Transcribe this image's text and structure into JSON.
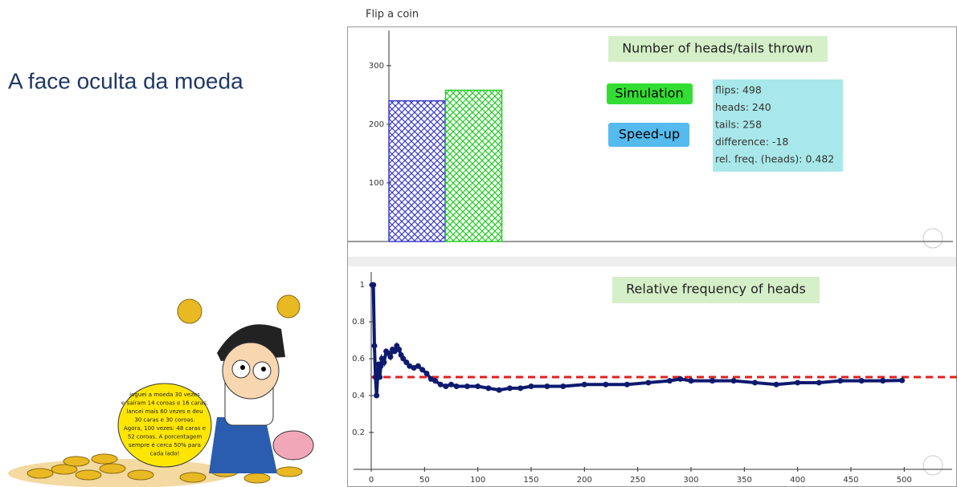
{
  "slide_title": "A face oculta da moeda",
  "applet_label": "Flip a coin",
  "bubble_lines": [
    "joguei a moeda 30 vezes",
    "e saíram 14 coroas e 16 caras.",
    "lancei mais 60 vezes e deu",
    "30 caras e 30 coroas.",
    "Agora, 100 vezes: 48 caras e",
    "52 coroas. A porcentagem",
    "sempre é cerca 50% para",
    "cada lado!"
  ],
  "buttons": [
    "Simulation",
    "Speed-up"
  ],
  "info_lines": [
    "flips: 498",
    "heads: 240",
    "tails: 258",
    "difference: -18",
    "rel. freq. (heads): 0.482"
  ],
  "chart_data": [
    {
      "type": "bar",
      "title": "Number of heads/tails thrown",
      "categories": [
        null,
        null
      ],
      "values": [
        240,
        258
      ],
      "colors": [
        "#3a3acc",
        "#22cc22"
      ],
      "ylim": [
        0,
        360
      ],
      "yticks": [
        100,
        200,
        300
      ]
    },
    {
      "type": "scatter",
      "title": "Relative frequency of heads",
      "color": "#0d1a6e",
      "reference_line": 0.5,
      "reference_color": "#e02020",
      "xlim": [
        0,
        545
      ],
      "ylim": [
        0,
        1.07
      ],
      "xticks": [
        0,
        50,
        100,
        150,
        200,
        250,
        300,
        350,
        400,
        450,
        500
      ],
      "yticks": [
        0.2,
        0.4,
        0.6,
        0.8,
        1
      ],
      "x": [
        1,
        2,
        3,
        4,
        5,
        6,
        7,
        8,
        9,
        10,
        12,
        14,
        16,
        18,
        20,
        22,
        24,
        26,
        28,
        30,
        33,
        36,
        40,
        44,
        48,
        52,
        56,
        60,
        65,
        70,
        75,
        80,
        90,
        100,
        110,
        120,
        130,
        140,
        150,
        165,
        180,
        200,
        220,
        240,
        260,
        280,
        290,
        300,
        320,
        340,
        360,
        380,
        400,
        420,
        440,
        460,
        480,
        498
      ],
      "values": [
        1,
        1,
        0.67,
        0.5,
        0.4,
        0.5,
        0.57,
        0.5,
        0.56,
        0.6,
        0.58,
        0.64,
        0.63,
        0.61,
        0.65,
        0.64,
        0.67,
        0.65,
        0.62,
        0.6,
        0.58,
        0.56,
        0.55,
        0.56,
        0.54,
        0.52,
        0.49,
        0.48,
        0.46,
        0.45,
        0.46,
        0.45,
        0.45,
        0.45,
        0.44,
        0.43,
        0.44,
        0.44,
        0.45,
        0.45,
        0.45,
        0.46,
        0.46,
        0.46,
        0.47,
        0.48,
        0.49,
        0.48,
        0.48,
        0.48,
        0.47,
        0.46,
        0.47,
        0.47,
        0.48,
        0.48,
        0.48,
        0.482
      ]
    }
  ]
}
